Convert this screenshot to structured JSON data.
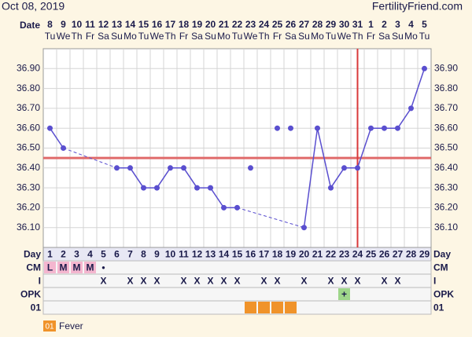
{
  "chart_data": {
    "type": "line",
    "title": "Oct 08, 2019",
    "brand": "FertilityFriend.com",
    "date_label": "Date",
    "dates": [
      8,
      9,
      10,
      11,
      12,
      13,
      14,
      15,
      16,
      17,
      18,
      19,
      20,
      21,
      22,
      23,
      24,
      25,
      26,
      27,
      28,
      29,
      30,
      31,
      1,
      2,
      3,
      4,
      5
    ],
    "weekdays": [
      "Tu",
      "We",
      "Th",
      "Fr",
      "Sa",
      "Su",
      "Mo",
      "Tu",
      "We",
      "Th",
      "Fr",
      "Sa",
      "Su",
      "Mo",
      "Tu",
      "We",
      "Th",
      "Fr",
      "Sa",
      "Su",
      "Mo",
      "Tu",
      "We",
      "Th",
      "Fr",
      "Sa",
      "Su",
      "Mo",
      "Tu"
    ],
    "day_label": "Day",
    "x": [
      1,
      2,
      3,
      4,
      5,
      6,
      7,
      8,
      9,
      10,
      11,
      12,
      13,
      14,
      15,
      16,
      17,
      18,
      19,
      20,
      21,
      22,
      23,
      24,
      25,
      26,
      27,
      28,
      29
    ],
    "series": [
      {
        "color": "#5a4fcf",
        "values": [
          36.6,
          36.5,
          null,
          null,
          null,
          36.4,
          36.4,
          36.3,
          36.3,
          36.4,
          36.4,
          36.3,
          36.3,
          36.2,
          36.2,
          null,
          null,
          null,
          null,
          36.1,
          36.6,
          36.3,
          36.4,
          36.4,
          36.6,
          36.6,
          36.6,
          36.7,
          36.9
        ]
      }
    ],
    "excluded": {
      "color": "#5a4fcf",
      "values": [
        null,
        null,
        null,
        null,
        null,
        null,
        null,
        null,
        null,
        null,
        null,
        null,
        null,
        null,
        null,
        36.4,
        null,
        36.6,
        36.6,
        null,
        null,
        null,
        null,
        null,
        null,
        null,
        null,
        null,
        null
      ]
    },
    "coverline": {
      "value": 36.45,
      "color": "#e06a6a"
    },
    "ovulation": {
      "day": 24,
      "color": "#d9383a"
    },
    "ylim": [
      36.0,
      37.0
    ],
    "yticks": [
      {
        "value": 36.1,
        "label": "36.10"
      },
      {
        "value": 36.2,
        "label": "36.20"
      },
      {
        "value": 36.3,
        "label": "36.30"
      },
      {
        "value": 36.4,
        "label": "36.40"
      },
      {
        "value": 36.5,
        "label": "36.50"
      },
      {
        "value": 36.6,
        "label": "36.60"
      },
      {
        "value": 36.7,
        "label": "36.70"
      },
      {
        "value": 36.8,
        "label": "36.80"
      },
      {
        "value": 36.9,
        "label": "36.90"
      }
    ],
    "grid": true,
    "rows": [
      {
        "label": "CM",
        "cells": [
          "L",
          "M",
          "M",
          "M",
          "•",
          null,
          null,
          null,
          null,
          null,
          null,
          null,
          null,
          null,
          null,
          null,
          null,
          null,
          null,
          null,
          null,
          null,
          null,
          null,
          null,
          null,
          null,
          null,
          null
        ],
        "highlight_days": [
          1,
          2,
          3,
          4
        ],
        "highlight_color": "#f4b6cf"
      },
      {
        "label": "I",
        "cells": [
          null,
          null,
          null,
          null,
          "X",
          null,
          "X",
          "X",
          "X",
          null,
          "X",
          "X",
          "X",
          "X",
          "X",
          null,
          "X",
          "X",
          null,
          "X",
          null,
          "X",
          "X",
          "X",
          null,
          "X",
          "X",
          null,
          null
        ],
        "highlight_days": [],
        "highlight_color": "#ffffff"
      },
      {
        "label": "OPK",
        "cells": [
          null,
          null,
          null,
          null,
          null,
          null,
          null,
          null,
          null,
          null,
          null,
          null,
          null,
          null,
          null,
          null,
          null,
          null,
          null,
          null,
          null,
          null,
          "+",
          null,
          null,
          null,
          null,
          null,
          null
        ],
        "highlight_days": [
          23
        ],
        "highlight_color": "#9ed68a"
      },
      {
        "label": "01",
        "cells": [
          null,
          null,
          null,
          null,
          null,
          null,
          null,
          null,
          null,
          null,
          null,
          null,
          null,
          null,
          null,
          null,
          null,
          null,
          null,
          null,
          null,
          null,
          null,
          null,
          null,
          null,
          null,
          null,
          null
        ],
        "highlight_days": [
          16,
          17,
          18,
          19
        ],
        "highlight_color": "#f0932a"
      }
    ],
    "legend": {
      "code": "01",
      "label": "Fever",
      "color": "#f0932a"
    }
  }
}
